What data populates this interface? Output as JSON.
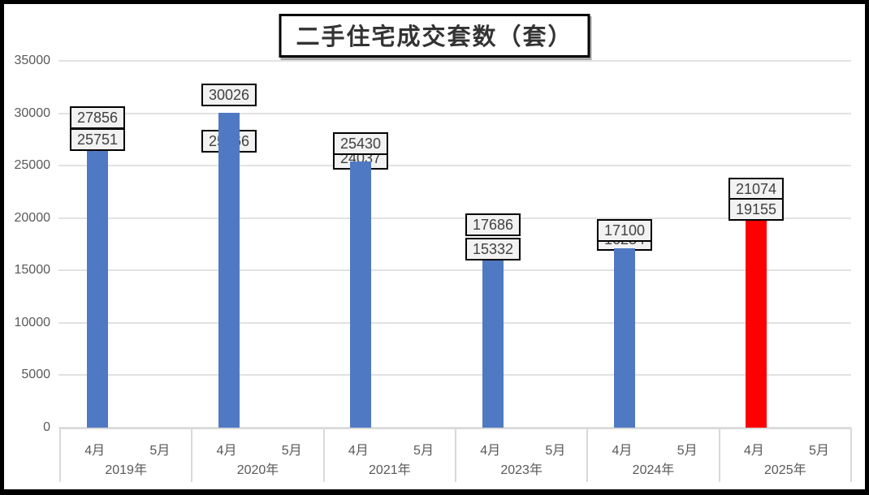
{
  "chart_data": {
    "type": "bar",
    "title": "二手住宅成交套数（套）",
    "xlabel": "",
    "ylabel": "",
    "ylim": [
      0,
      35000
    ],
    "ytick_interval": 5000,
    "yticks": [
      "35000",
      "30000",
      "25000",
      "20000",
      "15000",
      "10000",
      "5000",
      "0"
    ],
    "grid": true,
    "legend": "none",
    "bar_color_default": "#5079c3",
    "bar_color_highlight": "#ff0000",
    "axis_text_color": "#595959",
    "label_box_bg": "#f2f2f2",
    "groups": [
      {
        "year": "2019年",
        "highlight": false,
        "bars": [
          {
            "month": "4月",
            "value": 27856
          },
          {
            "month": "5月",
            "value": 25751
          }
        ]
      },
      {
        "year": "2020年",
        "highlight": false,
        "bars": [
          {
            "month": "4月",
            "value": 25666
          },
          {
            "month": "5月",
            "value": 30026
          }
        ]
      },
      {
        "year": "2021年",
        "highlight": false,
        "bars": [
          {
            "month": "4月",
            "value": 24037
          },
          {
            "month": "5月",
            "value": 25430
          }
        ]
      },
      {
        "year": "2023年",
        "highlight": false,
        "bars": [
          {
            "month": "4月",
            "value": 17686
          },
          {
            "month": "5月",
            "value": 15332
          }
        ]
      },
      {
        "year": "2024年",
        "highlight": false,
        "bars": [
          {
            "month": "4月",
            "value": 16234
          },
          {
            "month": "5月",
            "value": 17100
          }
        ]
      },
      {
        "year": "2025年",
        "highlight": true,
        "bars": [
          {
            "month": "4月",
            "value": 21074
          },
          {
            "month": "5月",
            "value": 19155
          }
        ]
      }
    ]
  }
}
